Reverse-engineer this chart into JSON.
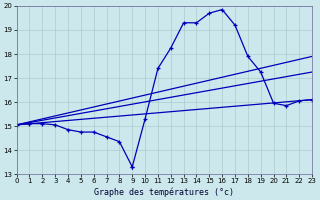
{
  "title": "Graphe des températures (°c)",
  "bg_color": "#cce8ec",
  "grid_color": "#aacccc",
  "line_color": "#0000bb",
  "xlim": [
    0,
    23
  ],
  "ylim": [
    13,
    20
  ],
  "xticks": [
    0,
    1,
    2,
    3,
    4,
    5,
    6,
    7,
    8,
    9,
    10,
    11,
    12,
    13,
    14,
    15,
    16,
    17,
    18,
    19,
    20,
    21,
    22,
    23
  ],
  "yticks": [
    13,
    14,
    15,
    16,
    17,
    18,
    19,
    20
  ],
  "curve1_x": [
    0,
    1,
    2,
    3,
    4,
    5,
    6,
    7,
    8,
    9
  ],
  "curve1_y": [
    15.05,
    15.1,
    15.1,
    15.05,
    14.85,
    14.75,
    14.75,
    14.55,
    14.35,
    13.3
  ],
  "curve2_x": [
    9,
    10,
    11,
    12,
    13,
    14,
    15,
    16,
    17,
    18,
    19,
    20,
    21,
    22,
    23
  ],
  "curve2_y": [
    13.3,
    15.3,
    17.4,
    18.25,
    19.3,
    19.3,
    19.7,
    19.85,
    19.2,
    17.9,
    17.25,
    15.95,
    15.85,
    16.05,
    16.1
  ],
  "line1_x": [
    0,
    23
  ],
  "line1_y": [
    15.05,
    17.9
  ],
  "line2_x": [
    0,
    23
  ],
  "line2_y": [
    15.05,
    17.25
  ],
  "line3_x": [
    0,
    23
  ],
  "line3_y": [
    15.05,
    16.1
  ]
}
